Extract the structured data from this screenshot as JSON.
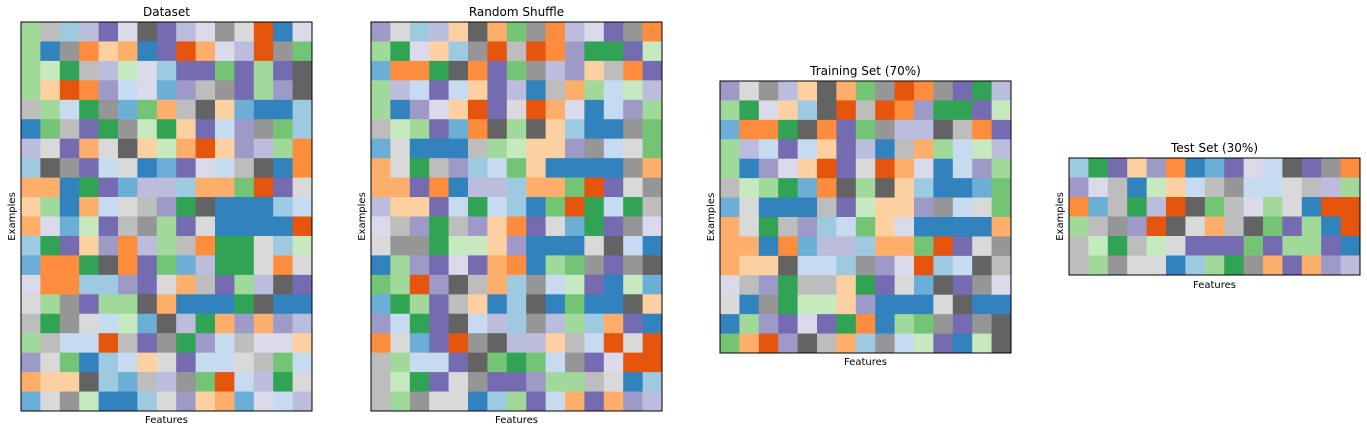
{
  "palette": [
    "#3182bd",
    "#6baed6",
    "#9ecae1",
    "#c6dbef",
    "#e6550d",
    "#fd8d3c",
    "#fdae6b",
    "#fdd0a2",
    "#31a354",
    "#74c476",
    "#a1d99b",
    "#c7e9c0",
    "#756bb1",
    "#9e9ac8",
    "#bcbddc",
    "#dadaeb",
    "#636363",
    "#969696",
    "#bdbdbd",
    "#d9d9d9"
  ],
  "chart_data": [
    {
      "type": "heatmap",
      "title": "Dataset",
      "xlabel": "Features",
      "ylabel": "Examples",
      "grid": [
        [
          10,
          18,
          2,
          14,
          12,
          15,
          16,
          12,
          14,
          15,
          17,
          19,
          4,
          0,
          15
        ],
        [
          10,
          0,
          17,
          5,
          7,
          6,
          0,
          12,
          4,
          6,
          15,
          14,
          4,
          17,
          9
        ],
        [
          10,
          11,
          8,
          18,
          14,
          11,
          15,
          2,
          12,
          12,
          9,
          12,
          10,
          12,
          16
        ],
        [
          10,
          7,
          4,
          5,
          13,
          3,
          15,
          1,
          13,
          18,
          17,
          12,
          10,
          13,
          16
        ],
        [
          18,
          10,
          3,
          8,
          17,
          1,
          9,
          6,
          18,
          16,
          7,
          1,
          0,
          0,
          2
        ],
        [
          0,
          9,
          18,
          12,
          8,
          17,
          11,
          8,
          7,
          12,
          3,
          13,
          17,
          9,
          2
        ],
        [
          14,
          19,
          12,
          6,
          19,
          16,
          7,
          11,
          6,
          4,
          7,
          13,
          14,
          10,
          5
        ],
        [
          2,
          16,
          17,
          12,
          3,
          19,
          0,
          1,
          12,
          15,
          3,
          18,
          16,
          0,
          5
        ],
        [
          6,
          6,
          0,
          8,
          12,
          1,
          14,
          14,
          2,
          6,
          6,
          9,
          4,
          12,
          19
        ],
        [
          7,
          10,
          0,
          6,
          3,
          19,
          18,
          13,
          8,
          16,
          0,
          0,
          0,
          2,
          3
        ],
        [
          6,
          15,
          1,
          11,
          12,
          18,
          17,
          10,
          12,
          19,
          0,
          0,
          0,
          0,
          4
        ],
        [
          2,
          8,
          12,
          7,
          13,
          5,
          14,
          10,
          18,
          5,
          8,
          8,
          19,
          2,
          11
        ],
        [
          1,
          5,
          5,
          8,
          16,
          5,
          12,
          9,
          1,
          14,
          8,
          8,
          19,
          5,
          19
        ],
        [
          15,
          5,
          5,
          2,
          2,
          13,
          12,
          19,
          6,
          18,
          12,
          10,
          14,
          16,
          12
        ],
        [
          19,
          10,
          17,
          12,
          10,
          10,
          16,
          6,
          0,
          0,
          0,
          8,
          16,
          0,
          0
        ],
        [
          18,
          8,
          17,
          19,
          3,
          11,
          1,
          16,
          14,
          8,
          6,
          13,
          6,
          13,
          14
        ],
        [
          10,
          18,
          3,
          3,
          4,
          18,
          12,
          17,
          8,
          13,
          3,
          18,
          15,
          15,
          7
        ],
        [
          13,
          19,
          9,
          0,
          2,
          3,
          7,
          19,
          12,
          3,
          3,
          19,
          18,
          9,
          3
        ],
        [
          6,
          7,
          7,
          16,
          2,
          1,
          18,
          14,
          17,
          9,
          4,
          3,
          14,
          8,
          19
        ],
        [
          1,
          19,
          17,
          11,
          0,
          0,
          2,
          19,
          13,
          7,
          6,
          1,
          15,
          3,
          14
        ]
      ]
    },
    {
      "type": "heatmap",
      "title": "Random Shuffle",
      "xlabel": "Features",
      "ylabel": "Examples",
      "grid": [
        [
          13,
          19,
          2,
          14,
          7,
          16,
          6,
          9,
          17,
          5,
          14,
          15,
          12,
          17,
          5
        ],
        [
          10,
          8,
          15,
          7,
          2,
          17,
          4,
          18,
          4,
          5,
          13,
          8,
          8,
          12,
          11
        ],
        [
          1,
          5,
          5,
          8,
          16,
          5,
          12,
          9,
          17,
          14,
          13,
          7,
          18,
          5,
          12
        ],
        [
          10,
          14,
          3,
          12,
          3,
          7,
          12,
          14,
          0,
          18,
          6,
          10,
          3,
          11,
          14
        ],
        [
          10,
          0,
          13,
          15,
          7,
          4,
          12,
          19,
          4,
          6,
          15,
          0,
          3,
          13,
          10
        ],
        [
          18,
          11,
          10,
          12,
          1,
          5,
          16,
          10,
          16,
          7,
          2,
          0,
          0,
          17,
          9
        ],
        [
          1,
          19,
          0,
          0,
          0,
          18,
          10,
          11,
          7,
          7,
          13,
          17,
          3,
          19,
          9
        ],
        [
          6,
          19,
          8,
          18,
          13,
          2,
          3,
          9,
          7,
          0,
          0,
          0,
          0,
          17,
          6
        ],
        [
          6,
          6,
          12,
          5,
          0,
          14,
          14,
          2,
          6,
          6,
          9,
          4,
          12,
          19,
          17
        ],
        [
          14,
          7,
          7,
          12,
          3,
          8,
          3,
          2,
          0,
          9,
          4,
          8,
          3,
          8,
          18
        ],
        [
          15,
          18,
          13,
          8,
          18,
          13,
          7,
          5,
          12,
          19,
          1,
          8,
          12,
          17,
          15
        ],
        [
          19,
          17,
          17,
          8,
          11,
          11,
          7,
          13,
          0,
          0,
          0,
          19,
          16,
          3,
          0
        ],
        [
          0,
          10,
          13,
          12,
          15,
          12,
          6,
          5,
          0,
          10,
          9,
          17,
          12,
          17,
          16
        ],
        [
          9,
          10,
          4,
          13,
          16,
          18,
          6,
          2,
          17,
          3,
          11,
          12,
          0,
          11,
          1
        ],
        [
          1,
          8,
          10,
          12,
          18,
          7,
          0,
          2,
          16,
          0,
          9,
          0,
          0,
          16,
          7
        ],
        [
          13,
          3,
          8,
          12,
          16,
          3,
          14,
          2,
          17,
          14,
          10,
          2,
          6,
          12,
          0
        ],
        [
          5,
          19,
          1,
          12,
          4,
          17,
          16,
          14,
          14,
          7,
          18,
          3,
          4,
          19,
          4
        ],
        [
          18,
          10,
          3,
          3,
          12,
          16,
          9,
          8,
          9,
          3,
          17,
          12,
          15,
          4,
          4
        ],
        [
          18,
          11,
          8,
          12,
          19,
          17,
          12,
          12,
          13,
          10,
          10,
          18,
          19,
          0,
          2
        ],
        [
          18,
          10,
          17,
          19,
          19,
          0,
          2,
          10,
          12,
          3,
          6,
          12,
          6,
          13,
          14
        ]
      ]
    },
    {
      "type": "heatmap",
      "title": "Training Set (70%)",
      "xlabel": "Features",
      "ylabel": "Examples",
      "grid": [
        [
          13,
          19,
          17,
          14,
          7,
          16,
          6,
          9,
          17,
          4,
          5,
          17,
          12,
          8,
          14
        ],
        [
          10,
          8,
          15,
          7,
          2,
          16,
          4,
          18,
          4,
          5,
          13,
          8,
          8,
          12,
          11
        ],
        [
          1,
          5,
          5,
          8,
          16,
          5,
          12,
          9,
          17,
          14,
          14,
          16,
          18,
          5,
          12
        ],
        [
          10,
          14,
          3,
          12,
          3,
          7,
          12,
          14,
          0,
          18,
          6,
          10,
          3,
          11,
          14
        ],
        [
          10,
          0,
          13,
          15,
          7,
          4,
          12,
          19,
          4,
          6,
          15,
          0,
          3,
          13,
          10
        ],
        [
          18,
          11,
          10,
          8,
          1,
          5,
          16,
          10,
          16,
          7,
          2,
          0,
          0,
          1,
          9
        ],
        [
          1,
          19,
          0,
          0,
          0,
          18,
          12,
          11,
          7,
          7,
          13,
          17,
          3,
          19,
          9
        ],
        [
          6,
          19,
          8,
          18,
          13,
          2,
          3,
          9,
          7,
          15,
          0,
          0,
          0,
          0,
          6
        ],
        [
          6,
          6,
          0,
          5,
          1,
          14,
          14,
          2,
          6,
          6,
          9,
          4,
          12,
          19,
          17
        ],
        [
          6,
          7,
          7,
          16,
          3,
          3,
          2,
          17,
          13,
          15,
          4,
          2,
          3,
          16,
          18
        ],
        [
          15,
          18,
          13,
          8,
          18,
          18,
          7,
          8,
          12,
          19,
          1,
          16,
          12,
          17,
          15
        ],
        [
          19,
          0,
          17,
          8,
          11,
          11,
          7,
          13,
          0,
          0,
          0,
          19,
          16,
          0,
          0
        ],
        [
          0,
          10,
          13,
          12,
          15,
          12,
          8,
          5,
          0,
          10,
          9,
          17,
          12,
          17,
          16
        ],
        [
          9,
          6,
          4,
          13,
          16,
          18,
          6,
          2,
          17,
          3,
          11,
          12,
          0,
          11,
          16
        ]
      ]
    },
    {
      "type": "heatmap",
      "title": "Test Set (30%)",
      "xlabel": "Features",
      "ylabel": "Examples",
      "grid": [
        [
          2,
          8,
          12,
          7,
          13,
          5,
          0,
          1,
          12,
          15,
          3,
          16,
          12,
          17,
          5
        ],
        [
          13,
          15,
          18,
          0,
          11,
          7,
          3,
          18,
          17,
          3,
          3,
          19,
          18,
          14,
          10
        ],
        [
          5,
          1,
          18,
          8,
          14,
          4,
          16,
          9,
          18,
          15,
          10,
          19,
          0,
          4,
          4
        ],
        [
          10,
          18,
          17,
          13,
          4,
          16,
          19,
          6,
          18,
          16,
          9,
          12,
          10,
          0,
          4
        ],
        [
          18,
          11,
          8,
          18,
          11,
          19,
          12,
          12,
          12,
          9,
          12,
          10,
          10,
          12,
          0
        ],
        [
          18,
          10,
          17,
          19,
          19,
          0,
          2,
          10,
          8,
          17,
          6,
          12,
          6,
          13,
          14
        ]
      ]
    }
  ]
}
